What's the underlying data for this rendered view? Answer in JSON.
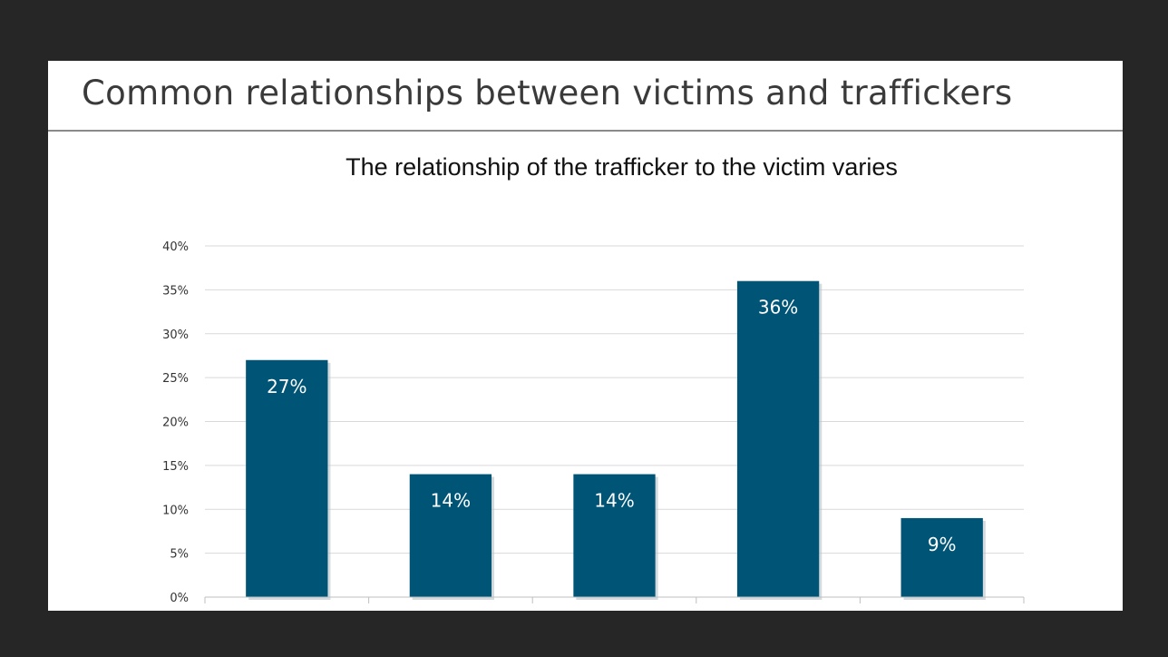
{
  "slide": {
    "title": "Common relationships between victims and traffickers"
  },
  "colors": {
    "background": "#262626",
    "slide": "#ffffff",
    "bar": "#005577",
    "gridline": "#d9d9d9"
  },
  "chart_data": {
    "type": "bar",
    "title": "The relationship of the trafficker to the victim varies",
    "xlabel": "",
    "ylabel": "",
    "categories": [
      "",
      "",
      "",
      "",
      ""
    ],
    "values": [
      27,
      14,
      14,
      36,
      9
    ],
    "data_labels": [
      "27%",
      "14%",
      "14%",
      "36%",
      "9%"
    ],
    "y_ticks": [
      "0%",
      "5%",
      "10%",
      "15%",
      "20%",
      "25%",
      "30%",
      "35%",
      "40%"
    ],
    "ylim": [
      0,
      40
    ],
    "grid": true,
    "legend": "none"
  }
}
